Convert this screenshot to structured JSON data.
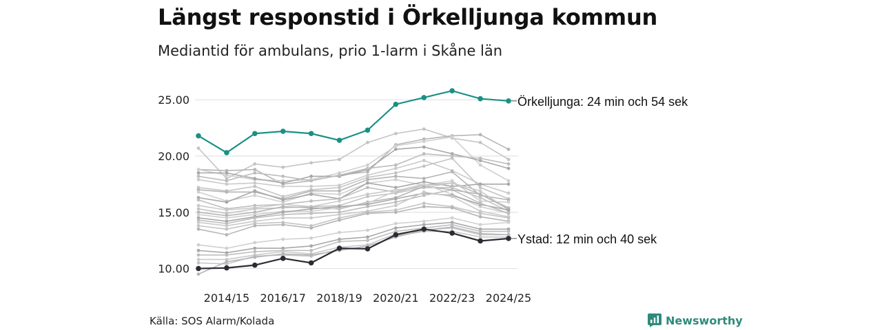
{
  "chart_data": {
    "type": "line",
    "title": "Längst responstid i Örkelljunga kommun",
    "subtitle": "Mediantid för ambulans, prio 1-larm i Skåne län",
    "x": [
      "2013/14",
      "2014/15",
      "2015/16",
      "2016/17",
      "2017/18",
      "2018/19",
      "2019/20",
      "2020/21",
      "2021/22",
      "2022/23",
      "2023/24",
      "2024/25"
    ],
    "x_tick_labels": [
      "2014/15",
      "2016/17",
      "2018/19",
      "2020/21",
      "2022/23",
      "2024/25"
    ],
    "y_ticks": [
      "10.00",
      "15.00",
      "20.00",
      "25.00"
    ],
    "ylim": [
      9.3,
      26.6
    ],
    "gridlines": true,
    "highlight_series": [
      {
        "name": "Örkelljunga",
        "color": "#1a9084",
        "values": [
          21.8,
          20.3,
          22.0,
          22.2,
          22.0,
          21.4,
          22.3,
          24.6,
          25.2,
          25.8,
          25.1,
          24.9
        ],
        "annotation": "Örkelljunga: 24 min och 54 sek"
      },
      {
        "name": "Ystad",
        "color": "#2b2b33",
        "values": [
          10.0,
          10.05,
          10.3,
          10.9,
          10.5,
          11.8,
          11.75,
          13.0,
          13.5,
          13.15,
          12.45,
          12.67
        ],
        "annotation": "Ystad: 12 min och 40 sek"
      }
    ],
    "background_series": [
      [
        20.7,
        18.0,
        19.3,
        19.0,
        19.4,
        19.7,
        21.2,
        22.0,
        22.4,
        21.6,
        21.2,
        19.7
      ],
      [
        18.8,
        18.7,
        18.8,
        17.5,
        17.8,
        18.3,
        18.6,
        21.0,
        21.5,
        21.8,
        21.9,
        20.6
      ],
      [
        18.8,
        18.3,
        17.9,
        17.8,
        17.9,
        18.5,
        19.2,
        20.9,
        21.3,
        21.7,
        19.2,
        17.8
      ],
      [
        18.5,
        18.5,
        18.0,
        17.6,
        18.2,
        18.2,
        18.8,
        20.6,
        20.8,
        20.2,
        19.6,
        18.9
      ],
      [
        18.2,
        17.8,
        18.5,
        18.2,
        17.8,
        18.3,
        18.9,
        19.2,
        20.2,
        20.0,
        19.8,
        19.3
      ],
      [
        17.9,
        17.5,
        17.6,
        17.3,
        17.3,
        17.4,
        18.3,
        18.9,
        19.6,
        18.7,
        17.5,
        16.7
      ],
      [
        17.2,
        16.9,
        17.3,
        16.4,
        17.0,
        17.2,
        18.1,
        18.5,
        19.1,
        19.8,
        17.2,
        16.2
      ],
      [
        17.0,
        16.8,
        16.8,
        16.2,
        16.9,
        16.9,
        17.9,
        18.2,
        18.0,
        18.6,
        16.5,
        16.1
      ],
      [
        16.8,
        16.0,
        16.5,
        15.9,
        16.7,
        16.6,
        17.6,
        17.9,
        17.4,
        17.8,
        16.0,
        15.9
      ],
      [
        16.3,
        15.9,
        16.9,
        16.1,
        16.6,
        16.2,
        17.6,
        17.2,
        17.7,
        17.3,
        17.5,
        17.5
      ],
      [
        16.1,
        15.3,
        15.6,
        15.7,
        16.0,
        16.2,
        17.2,
        16.8,
        17.4,
        17.6,
        16.6,
        15.4
      ],
      [
        15.6,
        15.2,
        15.4,
        15.7,
        15.5,
        16.0,
        16.6,
        17.0,
        17.2,
        17.6,
        16.9,
        15.2
      ],
      [
        15.3,
        14.9,
        15.3,
        15.4,
        15.5,
        15.6,
        16.4,
        16.7,
        17.2,
        17.2,
        16.3,
        15.1
      ],
      [
        15.0,
        14.7,
        15.0,
        15.5,
        15.4,
        15.3,
        15.9,
        16.3,
        17.3,
        17.0,
        16.6,
        15.3
      ],
      [
        14.8,
        14.5,
        14.8,
        15.1,
        15.1,
        15.4,
        15.8,
        16.9,
        17.5,
        16.6,
        15.5,
        14.9
      ],
      [
        14.5,
        14.2,
        14.6,
        15.0,
        15.3,
        15.5,
        15.7,
        16.2,
        16.7,
        16.5,
        15.7,
        15.2
      ],
      [
        14.3,
        14.0,
        14.5,
        14.8,
        14.9,
        15.0,
        15.5,
        15.9,
        16.5,
        17.0,
        15.8,
        14.9
      ],
      [
        14.1,
        13.8,
        14.2,
        14.5,
        14.5,
        14.8,
        15.1,
        15.6,
        16.8,
        16.4,
        15.1,
        14.6
      ],
      [
        13.8,
        13.5,
        14.0,
        14.1,
        13.8,
        14.5,
        15.0,
        15.2,
        15.8,
        15.5,
        14.9,
        14.5
      ],
      [
        13.5,
        13.0,
        13.8,
        13.9,
        13.6,
        14.3,
        14.9,
        15.0,
        15.5,
        15.4,
        14.6,
        14.2
      ],
      [
        12.1,
        11.8,
        12.3,
        12.6,
        12.7,
        13.2,
        13.4,
        14.0,
        14.2,
        14.5,
        13.9,
        14.1
      ],
      [
        11.6,
        11.4,
        11.8,
        11.8,
        12.0,
        12.6,
        12.8,
        13.6,
        13.9,
        14.1,
        13.5,
        13.5
      ],
      [
        11.2,
        11.2,
        11.5,
        11.6,
        11.6,
        12.4,
        12.5,
        13.3,
        13.6,
        13.9,
        13.3,
        13.3
      ],
      [
        10.8,
        10.8,
        11.2,
        11.5,
        11.3,
        11.9,
        12.1,
        13.1,
        13.4,
        13.6,
        13.0,
        13.0
      ],
      [
        10.5,
        10.4,
        11.1,
        11.2,
        11.1,
        11.7,
        11.8,
        12.9,
        13.3,
        13.3,
        12.8,
        12.8
      ],
      [
        9.5,
        10.6,
        11.0,
        11.3,
        11.2,
        11.6,
        12.0,
        12.8,
        13.4,
        13.7,
        13.1,
        13.0
      ]
    ]
  },
  "source": "Källa: SOS Alarm/Kolada",
  "brand": {
    "name": "Newsworthy",
    "icon": "newsworthy-logo-icon",
    "color": "#2e8a7c"
  }
}
